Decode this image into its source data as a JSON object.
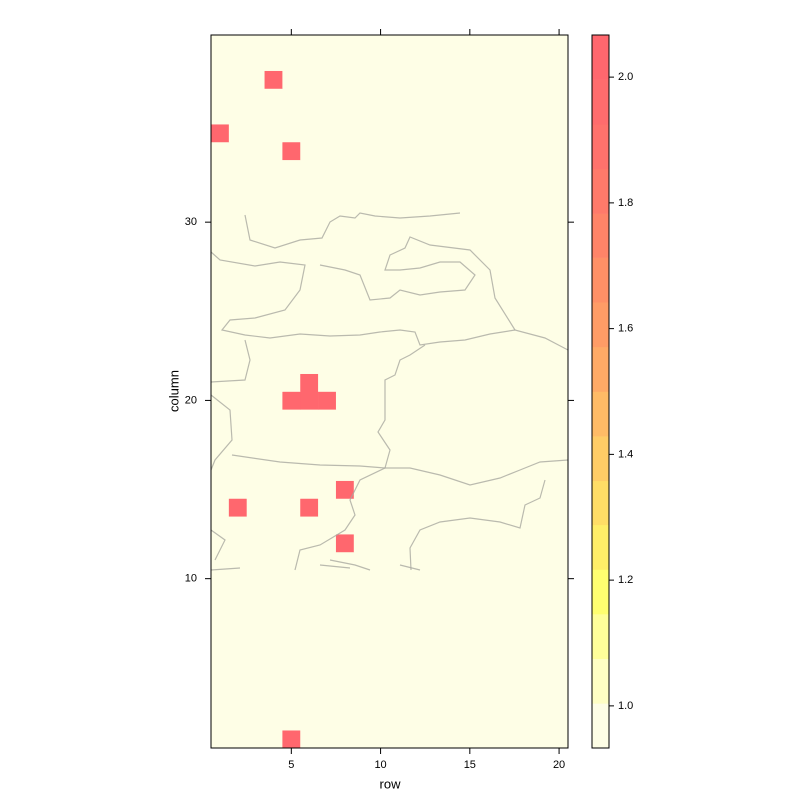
{
  "chart_data": {
    "type": "heatmap",
    "x_label": "row",
    "y_label": "column",
    "x": [
      1,
      2,
      3,
      4,
      5,
      6,
      7,
      8,
      9,
      10,
      11,
      12,
      13,
      14,
      15,
      16,
      17,
      18,
      19,
      20
    ],
    "y": [
      1,
      2,
      3,
      4,
      5,
      6,
      7,
      8,
      9,
      10,
      11,
      12,
      13,
      14,
      15,
      16,
      17,
      18,
      19,
      20,
      21,
      22,
      23,
      24,
      25,
      26,
      27,
      28,
      29,
      30,
      31,
      32,
      33,
      34,
      35,
      36,
      37,
      38,
      39,
      40
    ],
    "z": [
      [
        1,
        1,
        1,
        1,
        2,
        1,
        1,
        1,
        1,
        1,
        1,
        1,
        1,
        1,
        1,
        1,
        1,
        1,
        1,
        1
      ],
      [
        1,
        1,
        1,
        1,
        1,
        1,
        1,
        1,
        1,
        1,
        1,
        1,
        1,
        1,
        1,
        1,
        1,
        1,
        1,
        1
      ],
      [
        1,
        1,
        1,
        1,
        1,
        1,
        1,
        1,
        1,
        1,
        1,
        1,
        1,
        1,
        1,
        1,
        1,
        1,
        1,
        1
      ],
      [
        1,
        1,
        1,
        1,
        1,
        1,
        1,
        1,
        1,
        1,
        1,
        1,
        1,
        1,
        1,
        1,
        1,
        1,
        1,
        1
      ],
      [
        1,
        1,
        1,
        1,
        1,
        1,
        1,
        1,
        1,
        1,
        1,
        1,
        1,
        1,
        1,
        1,
        1,
        1,
        1,
        1
      ],
      [
        1,
        1,
        1,
        1,
        1,
        1,
        1,
        1,
        1,
        1,
        1,
        1,
        1,
        1,
        1,
        1,
        1,
        1,
        1,
        1
      ],
      [
        1,
        1,
        1,
        1,
        1,
        1,
        1,
        1,
        1,
        1,
        1,
        1,
        1,
        1,
        1,
        1,
        1,
        1,
        1,
        1
      ],
      [
        1,
        1,
        1,
        1,
        1,
        1,
        1,
        1,
        1,
        1,
        1,
        1,
        1,
        1,
        1,
        1,
        1,
        1,
        1,
        1
      ],
      [
        1,
        1,
        1,
        1,
        1,
        1,
        1,
        1,
        1,
        1,
        1,
        1,
        1,
        1,
        1,
        1,
        1,
        1,
        1,
        1
      ],
      [
        1,
        1,
        1,
        1,
        1,
        1,
        1,
        1,
        1,
        1,
        1,
        1,
        1,
        1,
        1,
        1,
        1,
        1,
        1,
        1
      ],
      [
        1,
        1,
        1,
        1,
        1,
        1,
        1,
        1,
        1,
        1,
        1,
        1,
        1,
        1,
        1,
        1,
        1,
        1,
        1,
        1
      ],
      [
        1,
        1,
        1,
        1,
        1,
        1,
        1,
        2,
        1,
        1,
        1,
        1,
        1,
        1,
        1,
        1,
        1,
        1,
        1,
        1
      ],
      [
        1,
        1,
        1,
        1,
        1,
        1,
        1,
        1,
        1,
        1,
        1,
        1,
        1,
        1,
        1,
        1,
        1,
        1,
        1,
        1
      ],
      [
        1,
        2,
        1,
        1,
        1,
        2,
        1,
        1,
        1,
        1,
        1,
        1,
        1,
        1,
        1,
        1,
        1,
        1,
        1,
        1
      ],
      [
        1,
        1,
        1,
        1,
        1,
        1,
        1,
        2,
        1,
        1,
        1,
        1,
        1,
        1,
        1,
        1,
        1,
        1,
        1,
        1
      ],
      [
        1,
        1,
        1,
        1,
        1,
        1,
        1,
        1,
        1,
        1,
        1,
        1,
        1,
        1,
        1,
        1,
        1,
        1,
        1,
        1
      ],
      [
        1,
        1,
        1,
        1,
        1,
        1,
        1,
        1,
        1,
        1,
        1,
        1,
        1,
        1,
        1,
        1,
        1,
        1,
        1,
        1
      ],
      [
        1,
        1,
        1,
        1,
        1,
        1,
        1,
        1,
        1,
        1,
        1,
        1,
        1,
        1,
        1,
        1,
        1,
        1,
        1,
        1
      ],
      [
        1,
        1,
        1,
        1,
        1,
        1,
        1,
        1,
        1,
        1,
        1,
        1,
        1,
        1,
        1,
        1,
        1,
        1,
        1,
        1
      ],
      [
        1,
        1,
        1,
        1,
        2,
        2,
        2,
        1,
        1,
        1,
        1,
        1,
        1,
        1,
        1,
        1,
        1,
        1,
        1,
        1
      ],
      [
        1,
        1,
        1,
        1,
        1,
        2,
        1,
        1,
        1,
        1,
        1,
        1,
        1,
        1,
        1,
        1,
        1,
        1,
        1,
        1
      ],
      [
        1,
        1,
        1,
        1,
        1,
        1,
        1,
        1,
        1,
        1,
        1,
        1,
        1,
        1,
        1,
        1,
        1,
        1,
        1,
        1
      ],
      [
        1,
        1,
        1,
        1,
        1,
        1,
        1,
        1,
        1,
        1,
        1,
        1,
        1,
        1,
        1,
        1,
        1,
        1,
        1,
        1
      ],
      [
        1,
        1,
        1,
        1,
        1,
        1,
        1,
        1,
        1,
        1,
        1,
        1,
        1,
        1,
        1,
        1,
        1,
        1,
        1,
        1
      ],
      [
        1,
        1,
        1,
        1,
        1,
        1,
        1,
        1,
        1,
        1,
        1,
        1,
        1,
        1,
        1,
        1,
        1,
        1,
        1,
        1
      ],
      [
        1,
        1,
        1,
        1,
        1,
        1,
        1,
        1,
        1,
        1,
        1,
        1,
        1,
        1,
        1,
        1,
        1,
        1,
        1,
        1
      ],
      [
        1,
        1,
        1,
        1,
        1,
        1,
        1,
        1,
        1,
        1,
        1,
        1,
        1,
        1,
        1,
        1,
        1,
        1,
        1,
        1
      ],
      [
        1,
        1,
        1,
        1,
        1,
        1,
        1,
        1,
        1,
        1,
        1,
        1,
        1,
        1,
        1,
        1,
        1,
        1,
        1,
        1
      ],
      [
        1,
        1,
        1,
        1,
        1,
        1,
        1,
        1,
        1,
        1,
        1,
        1,
        1,
        1,
        1,
        1,
        1,
        1,
        1,
        1
      ],
      [
        1,
        1,
        1,
        1,
        1,
        1,
        1,
        1,
        1,
        1,
        1,
        1,
        1,
        1,
        1,
        1,
        1,
        1,
        1,
        1
      ],
      [
        1,
        1,
        1,
        1,
        1,
        1,
        1,
        1,
        1,
        1,
        1,
        1,
        1,
        1,
        1,
        1,
        1,
        1,
        1,
        1
      ],
      [
        1,
        1,
        1,
        1,
        1,
        1,
        1,
        1,
        1,
        1,
        1,
        1,
        1,
        1,
        1,
        1,
        1,
        1,
        1,
        1
      ],
      [
        1,
        1,
        1,
        1,
        1,
        1,
        1,
        1,
        1,
        1,
        1,
        1,
        1,
        1,
        1,
        1,
        1,
        1,
        1,
        1
      ],
      [
        1,
        1,
        1,
        1,
        2,
        1,
        1,
        1,
        1,
        1,
        1,
        1,
        1,
        1,
        1,
        1,
        1,
        1,
        1,
        1
      ],
      [
        2,
        1,
        1,
        1,
        1,
        1,
        1,
        1,
        1,
        1,
        1,
        1,
        1,
        1,
        1,
        1,
        1,
        1,
        1,
        1
      ],
      [
        1,
        1,
        1,
        1,
        1,
        1,
        1,
        1,
        1,
        1,
        1,
        1,
        1,
        1,
        1,
        1,
        1,
        1,
        1,
        1
      ],
      [
        1,
        1,
        1,
        1,
        1,
        1,
        1,
        1,
        1,
        1,
        1,
        1,
        1,
        1,
        1,
        1,
        1,
        1,
        1,
        1
      ],
      [
        1,
        1,
        1,
        2,
        1,
        1,
        1,
        1,
        1,
        1,
        1,
        1,
        1,
        1,
        1,
        1,
        1,
        1,
        1,
        1
      ],
      [
        1,
        1,
        1,
        1,
        1,
        1,
        1,
        1,
        1,
        1,
        1,
        1,
        1,
        1,
        1,
        1,
        1,
        1,
        1,
        1
      ],
      [
        1,
        1,
        1,
        1,
        1,
        1,
        1,
        1,
        1,
        1,
        1,
        1,
        1,
        1,
        1,
        1,
        1,
        1,
        1,
        1
      ]
    ],
    "xlim": [
      0.5,
      20.5
    ],
    "ylim": [
      0.5,
      40.5
    ],
    "xticks": [
      5,
      10,
      15,
      20
    ],
    "yticks": [
      10,
      20,
      30
    ],
    "colorbar_breaks": [
      0.933,
      1.004,
      1.075,
      1.146,
      1.217,
      1.288,
      1.358,
      1.429,
      1.5,
      1.571,
      1.642,
      1.713,
      1.783,
      1.854,
      1.925,
      1.996,
      2.067
    ],
    "colorbar_colors": [
      "#fefee6",
      "#ffffc4",
      "#ffff9a",
      "#ffff70",
      "#ffee68",
      "#ffdd66",
      "#ffcc66",
      "#ffbb66",
      "#ffaa66",
      "#ff9c66",
      "#ff9066",
      "#ff8468",
      "#ff7a6a",
      "#ff726c",
      "#ff6c6d",
      "#ff676e"
    ],
    "colorbar_ticks": [
      {
        "value": 1.0,
        "label": "1.0"
      },
      {
        "value": 1.2,
        "label": "1.2"
      },
      {
        "value": 1.4,
        "label": "1.4"
      },
      {
        "value": 1.6,
        "label": "1.6"
      },
      {
        "value": 1.8,
        "label": "1.8"
      },
      {
        "value": 2.0,
        "label": "2.0"
      }
    ]
  }
}
